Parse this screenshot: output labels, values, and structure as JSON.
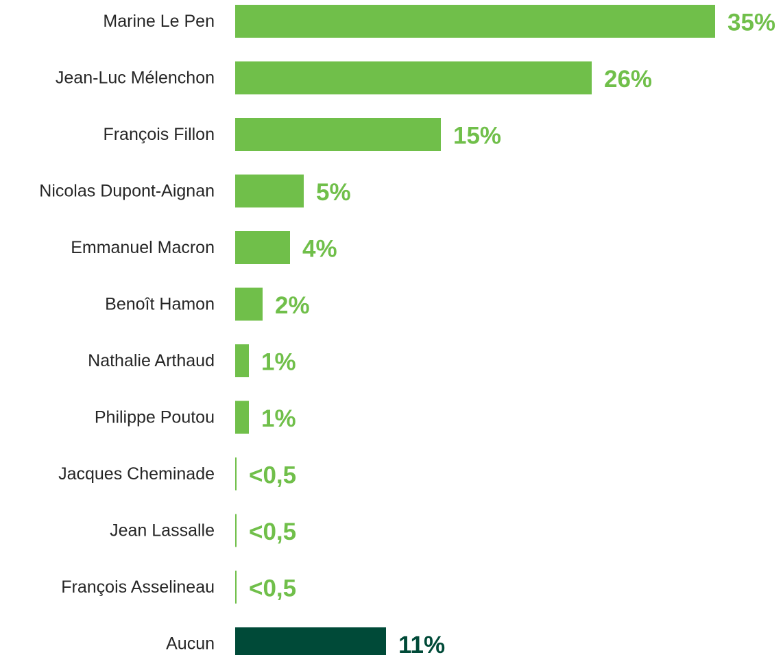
{
  "chart_data": {
    "type": "bar",
    "orientation": "horizontal",
    "title": "",
    "xlabel": "",
    "ylabel": "",
    "grid": false,
    "xlim": [
      0,
      35
    ],
    "colors": {
      "default": "#70bf4a",
      "highlight": "#004a38"
    },
    "categories": [
      "Marine Le Pen",
      "Jean-Luc Mélenchon",
      "François Fillon",
      "Nicolas Dupont-Aignan",
      "Emmanuel Macron",
      "Benoît Hamon",
      "Nathalie Arthaud",
      "Philippe Poutou",
      "Jacques Cheminade",
      "Jean Lassalle",
      "François Asselineau",
      "Aucun"
    ],
    "values": [
      35,
      26,
      15,
      5,
      4,
      2,
      1,
      1,
      0.1,
      0.1,
      0.1,
      11
    ],
    "value_labels": [
      "35%",
      "26%",
      "15%",
      "5%",
      "4%",
      "2%",
      "1%",
      "1%",
      "<0,5",
      "<0,5",
      "<0,5",
      "11%"
    ],
    "highlight_category": "Aucun"
  }
}
